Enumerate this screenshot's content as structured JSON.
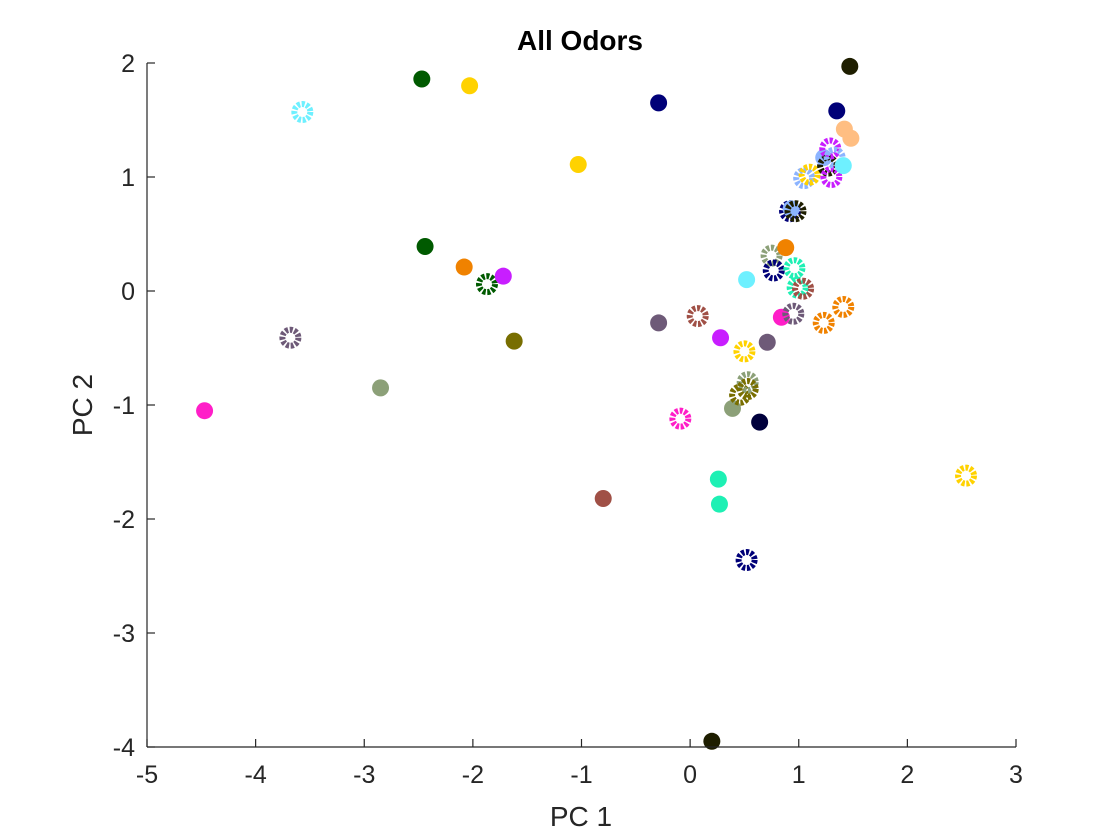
{
  "chart_data": {
    "type": "scatter",
    "title": "All Odors",
    "xlabel": "PC 1",
    "ylabel": "PC 2",
    "xlim": [
      -5,
      3
    ],
    "ylim": [
      -4,
      2
    ],
    "xticks": [
      -5,
      -4,
      -3,
      -2,
      -1,
      0,
      1,
      2,
      3
    ],
    "yticks": [
      -4,
      -3,
      -2,
      -1,
      0,
      1,
      2
    ],
    "grid": false,
    "legend": "none",
    "axis_color": "#262626",
    "marker_styles": {
      "filled": "solid circle",
      "open": "dashed ring"
    },
    "points": [
      {
        "x": -4.47,
        "y": -1.05,
        "color": "#FF1EC8",
        "style": "filled"
      },
      {
        "x": -3.68,
        "y": -0.41,
        "color": "#6E5A78",
        "style": "open"
      },
      {
        "x": -3.57,
        "y": 1.57,
        "color": "#6EF0FF",
        "style": "open"
      },
      {
        "x": -2.85,
        "y": -0.85,
        "color": "#8CA078",
        "style": "filled"
      },
      {
        "x": -2.47,
        "y": 1.86,
        "color": "#005A00",
        "style": "filled"
      },
      {
        "x": -2.44,
        "y": 0.39,
        "color": "#005A00",
        "style": "filled"
      },
      {
        "x": -2.08,
        "y": 0.21,
        "color": "#F08200",
        "style": "filled"
      },
      {
        "x": -2.03,
        "y": 1.8,
        "color": "#FFD200",
        "style": "filled"
      },
      {
        "x": -1.87,
        "y": 0.06,
        "color": "#005A00",
        "style": "open"
      },
      {
        "x": -1.72,
        "y": 0.13,
        "color": "#C81EFF",
        "style": "filled"
      },
      {
        "x": -1.62,
        "y": -0.44,
        "color": "#786E00",
        "style": "filled"
      },
      {
        "x": -1.03,
        "y": 1.11,
        "color": "#FFD200",
        "style": "filled"
      },
      {
        "x": -0.8,
        "y": -1.82,
        "color": "#A05046",
        "style": "filled"
      },
      {
        "x": -0.29,
        "y": 1.65,
        "color": "#000078",
        "style": "filled"
      },
      {
        "x": -0.29,
        "y": -0.28,
        "color": "#6E5A78",
        "style": "filled"
      },
      {
        "x": -0.09,
        "y": -1.12,
        "color": "#FF1EC8",
        "style": "open"
      },
      {
        "x": 0.07,
        "y": -0.22,
        "color": "#A05046",
        "style": "open"
      },
      {
        "x": 0.2,
        "y": -3.95,
        "color": "#1E1E00",
        "style": "filled"
      },
      {
        "x": 0.26,
        "y": -1.65,
        "color": "#1EF0B4",
        "style": "filled"
      },
      {
        "x": 0.27,
        "y": -1.87,
        "color": "#1EF0B4",
        "style": "filled"
      },
      {
        "x": 0.28,
        "y": -0.41,
        "color": "#C81EFF",
        "style": "filled"
      },
      {
        "x": 0.39,
        "y": -1.03,
        "color": "#8CA078",
        "style": "filled"
      },
      {
        "x": 0.46,
        "y": -0.91,
        "color": "#786E00",
        "style": "open"
      },
      {
        "x": 0.5,
        "y": -0.53,
        "color": "#FFD200",
        "style": "open"
      },
      {
        "x": 0.52,
        "y": -2.36,
        "color": "#000078",
        "style": "open"
      },
      {
        "x": 0.52,
        "y": 0.1,
        "color": "#6EF0FF",
        "style": "filled"
      },
      {
        "x": 0.53,
        "y": -0.8,
        "color": "#8CA078",
        "style": "open"
      },
      {
        "x": 0.53,
        "y": -0.86,
        "color": "#786E00",
        "style": "open"
      },
      {
        "x": 0.64,
        "y": -1.15,
        "color": "#00003C",
        "style": "filled"
      },
      {
        "x": 0.71,
        "y": -0.45,
        "color": "#6E5A78",
        "style": "filled"
      },
      {
        "x": 0.75,
        "y": 0.31,
        "color": "#8CA078",
        "style": "open"
      },
      {
        "x": 0.77,
        "y": 0.18,
        "color": "#000078",
        "style": "open"
      },
      {
        "x": 0.84,
        "y": -0.23,
        "color": "#FF1EC8",
        "style": "filled"
      },
      {
        "x": 0.88,
        "y": 0.38,
        "color": "#F08200",
        "style": "filled"
      },
      {
        "x": 0.92,
        "y": 0.7,
        "color": "#000078",
        "style": "open"
      },
      {
        "x": 0.93,
        "y": 0.72,
        "color": "#8CB4FF",
        "style": "filled"
      },
      {
        "x": 0.95,
        "y": -0.2,
        "color": "#6E5A78",
        "style": "open"
      },
      {
        "x": 0.96,
        "y": 0.2,
        "color": "#1EF0B4",
        "style": "open"
      },
      {
        "x": 0.97,
        "y": 0.7,
        "color": "#1E1E00",
        "style": "open"
      },
      {
        "x": 0.99,
        "y": 0.03,
        "color": "#1EF0B4",
        "style": "open"
      },
      {
        "x": 1.04,
        "y": 0.02,
        "color": "#A05046",
        "style": "open"
      },
      {
        "x": 1.05,
        "y": 0.99,
        "color": "#8CB4FF",
        "style": "open"
      },
      {
        "x": 1.1,
        "y": 1.02,
        "color": "#FFD200",
        "style": "open"
      },
      {
        "x": 1.23,
        "y": -0.28,
        "color": "#F08200",
        "style": "open"
      },
      {
        "x": 1.23,
        "y": 1.17,
        "color": "#8CB4FF",
        "style": "filled"
      },
      {
        "x": 1.27,
        "y": 1.1,
        "color": "#1E1E00",
        "style": "open"
      },
      {
        "x": 1.29,
        "y": 1.25,
        "color": "#C81EFF",
        "style": "open"
      },
      {
        "x": 1.3,
        "y": 1.0,
        "color": "#C81EFF",
        "style": "open"
      },
      {
        "x": 1.33,
        "y": 1.17,
        "color": "#8CB4FF",
        "style": "open"
      },
      {
        "x": 1.35,
        "y": 1.58,
        "color": "#000078",
        "style": "filled"
      },
      {
        "x": 1.41,
        "y": -0.14,
        "color": "#F08200",
        "style": "open"
      },
      {
        "x": 1.41,
        "y": 1.1,
        "color": "#6EF0FF",
        "style": "filled"
      },
      {
        "x": 1.42,
        "y": 1.42,
        "color": "#FFBE82",
        "style": "filled"
      },
      {
        "x": 1.47,
        "y": 1.97,
        "color": "#1E1E00",
        "style": "filled"
      },
      {
        "x": 1.48,
        "y": 1.34,
        "color": "#FFBE82",
        "style": "filled"
      },
      {
        "x": 2.54,
        "y": -1.62,
        "color": "#FFD200",
        "style": "open"
      }
    ]
  }
}
